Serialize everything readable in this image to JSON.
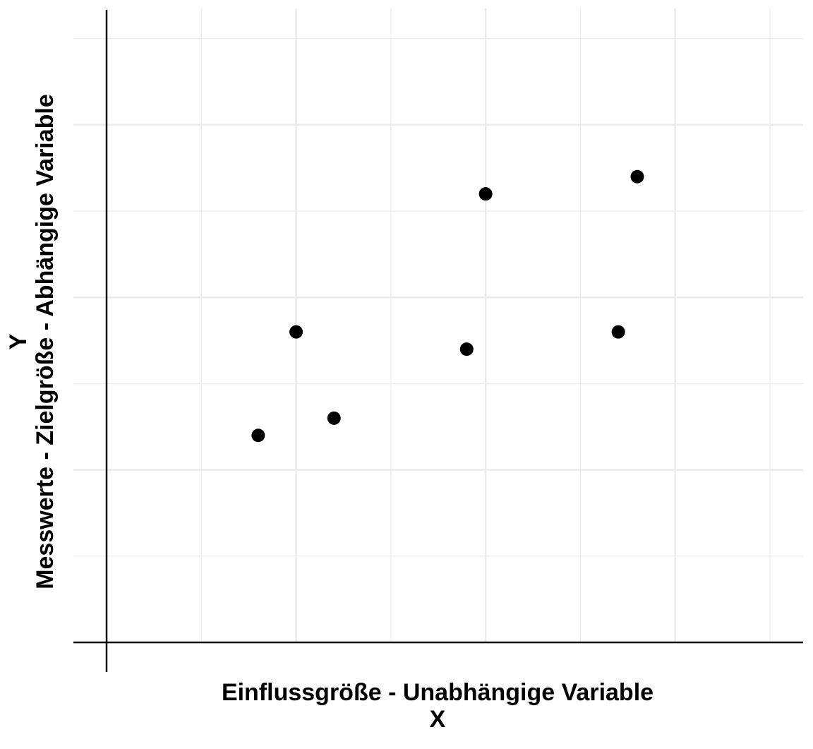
{
  "chart_data": {
    "type": "scatter",
    "title": "",
    "xlabel": "Einflussgröße - Unabhängige Variable",
    "xlabel_line2": "X",
    "ylabel": "Messwerte - Zielgröße - Abhängige Variable",
    "ylabel_line2": "Y",
    "xlim": [
      -0.35,
      7.35
    ],
    "ylim": [
      0,
      7.35
    ],
    "x_grid_major": [
      0,
      2,
      4,
      6
    ],
    "x_grid_minor": [
      1,
      3,
      5,
      7
    ],
    "y_grid_major": [
      2,
      4,
      6
    ],
    "y_grid_minor": [
      1,
      3,
      5,
      7
    ],
    "grid": true,
    "tick_labels_shown": false,
    "x_axis_line_at_y": 0,
    "y_axis_line_at_x": 0,
    "point_color": "#000000",
    "grid_color": "#ebebeb",
    "series": [
      {
        "x": [
          1.6,
          2.0,
          2.4,
          3.8,
          4.0,
          5.4,
          5.6
        ],
        "y": [
          2.4,
          3.6,
          2.6,
          3.4,
          5.2,
          3.6,
          5.4
        ]
      }
    ]
  }
}
